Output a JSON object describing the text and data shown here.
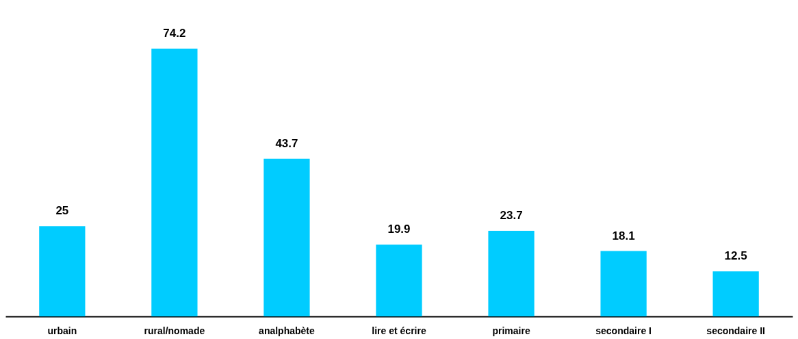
{
  "chart_data": {
    "type": "bar",
    "categories": [
      "urbain",
      "rural/nomade",
      "analphabète",
      "lire et écrire",
      "primaire",
      "secondaire I",
      "secondaire II"
    ],
    "values": [
      25,
      74.2,
      43.7,
      19.9,
      23.7,
      18.1,
      12.5
    ],
    "color": "#00ccff",
    "data_labels": true
  }
}
